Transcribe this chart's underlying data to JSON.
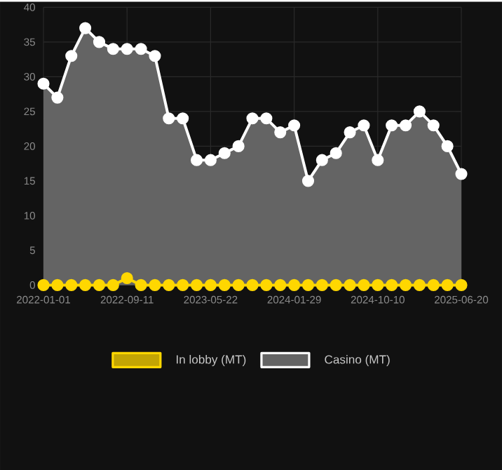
{
  "chart_data": {
    "type": "area",
    "categories": [
      "2022-01-01",
      null,
      null,
      null,
      null,
      null,
      "2022-09-11",
      null,
      null,
      null,
      null,
      null,
      "2023-05-22",
      null,
      null,
      null,
      null,
      null,
      "2024-01-29",
      null,
      null,
      null,
      null,
      null,
      "2024-10-10",
      null,
      null,
      null,
      null,
      null,
      "2025-06-20"
    ],
    "series": [
      {
        "name": "In lobby (MT)",
        "type": "line",
        "color": "#ffd700",
        "values": [
          0,
          0,
          0,
          0,
          0,
          0,
          1,
          0,
          0,
          0,
          0,
          0,
          0,
          0,
          0,
          0,
          0,
          0,
          0,
          0,
          0,
          0,
          0,
          0,
          0,
          0,
          0,
          0,
          0,
          0,
          0
        ]
      },
      {
        "name": "Casino (MT)",
        "color": "#ffffff",
        "values": [
          29,
          27,
          33,
          37,
          35,
          34,
          34,
          34,
          33,
          24,
          24,
          18,
          18,
          19,
          20,
          24,
          24,
          22,
          23,
          15,
          18,
          19,
          22,
          23,
          18,
          23,
          23,
          25,
          23,
          20,
          16
        ]
      }
    ],
    "ylim": [
      0,
      40
    ],
    "yticks": [
      0,
      5,
      10,
      15,
      20,
      25,
      30,
      35,
      40
    ],
    "grid": true,
    "legend": "bottom",
    "marker": "circle"
  }
}
